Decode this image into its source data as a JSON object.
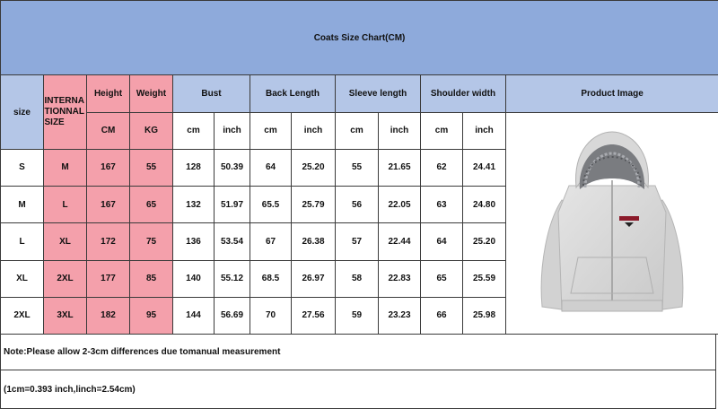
{
  "title": "Coats Size Chart(CM)",
  "headers": {
    "size": "size",
    "international": "INTERNATIONNAL SIZE",
    "height": "Height",
    "weight": "Weight",
    "bust": "Bust",
    "back_length": "Back Length",
    "sleeve_length": "Sleeve length",
    "shoulder_width": "Shoulder width",
    "product_image": "Product Image"
  },
  "units": {
    "height": "CM",
    "weight": "KG",
    "bust_cm": "cm",
    "bust_inch": "inch",
    "back_cm": "cm",
    "back_inch": "inch",
    "sleeve_cm": "cm",
    "sleeve_inch": "inch",
    "shoulder_cm": "cm",
    "shoulder_inch": "inch"
  },
  "rows": [
    {
      "size": "S",
      "intl": "M",
      "height": "167",
      "weight": "55",
      "bust_cm": "128",
      "bust_in": "50.39",
      "back_cm": "64",
      "back_in": "25.20",
      "sleeve_cm": "55",
      "sleeve_in": "21.65",
      "shoulder_cm": "62",
      "shoulder_in": "24.41"
    },
    {
      "size": "M",
      "intl": "L",
      "height": "167",
      "weight": "65",
      "bust_cm": "132",
      "bust_in": "51.97",
      "back_cm": "65.5",
      "back_in": "25.79",
      "sleeve_cm": "56",
      "sleeve_in": "22.05",
      "shoulder_cm": "63",
      "shoulder_in": "24.80"
    },
    {
      "size": "L",
      "intl": "XL",
      "height": "172",
      "weight": "75",
      "bust_cm": "136",
      "bust_in": "53.54",
      "back_cm": "67",
      "back_in": "26.38",
      "sleeve_cm": "57",
      "sleeve_in": "22.44",
      "shoulder_cm": "64",
      "shoulder_in": "25.20"
    },
    {
      "size": "XL",
      "intl": "2XL",
      "height": "177",
      "weight": "85",
      "bust_cm": "140",
      "bust_in": "55.12",
      "back_cm": "68.5",
      "back_in": "26.97",
      "sleeve_cm": "58",
      "sleeve_in": "22.83",
      "shoulder_cm": "65",
      "shoulder_in": "25.59"
    },
    {
      "size": "2XL",
      "intl": "3XL",
      "height": "182",
      "weight": "95",
      "bust_cm": "144",
      "bust_in": "56.69",
      "back_cm": "70",
      "back_in": "27.56",
      "sleeve_cm": "59",
      "sleeve_in": "23.23",
      "shoulder_cm": "66",
      "shoulder_in": "25.98"
    }
  ],
  "notes": {
    "measurement": "Note:Please allow 2-3cm differences due tomanual measurement",
    "conversion": "(1cm=0.393  inch,linch=2.54cm)"
  },
  "colors": {
    "title_bg": "#8eaadb",
    "header_blue": "#b4c6e7",
    "header_pink": "#f4a0ab",
    "inch_text": "#7a1020"
  },
  "product_image": {
    "icon": "hoodie-image",
    "description_color": "light-gray"
  }
}
